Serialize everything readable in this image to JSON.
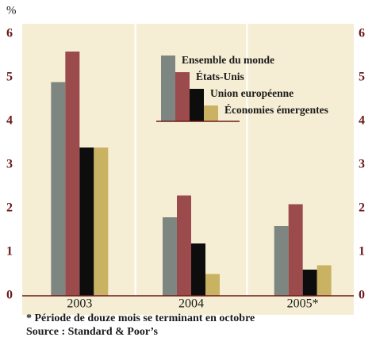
{
  "chart_data": {
    "type": "bar",
    "y_label": "%",
    "categories": [
      "2003",
      "2004",
      "2005*"
    ],
    "series": [
      {
        "name": "Ensemble du monde",
        "color": "#7d8681",
        "values": [
          4.9,
          1.8,
          1.6
        ]
      },
      {
        "name": "États-Unis",
        "color": "#9c4b4d",
        "values": [
          5.6,
          2.3,
          2.1
        ]
      },
      {
        "name": "Union européenne",
        "color": "#0d0d0d",
        "values": [
          3.4,
          1.2,
          0.6
        ]
      },
      {
        "name": "Économies émergentes",
        "color": "#c9b262",
        "values": [
          3.4,
          0.5,
          0.7
        ]
      }
    ],
    "ylim": [
      0,
      6
    ],
    "yticks": [
      0,
      1,
      2,
      3,
      4,
      5,
      6
    ],
    "notes": [
      "* Période de douze mois se terminant en octobre",
      "Source : Standard & Poor’s"
    ]
  }
}
